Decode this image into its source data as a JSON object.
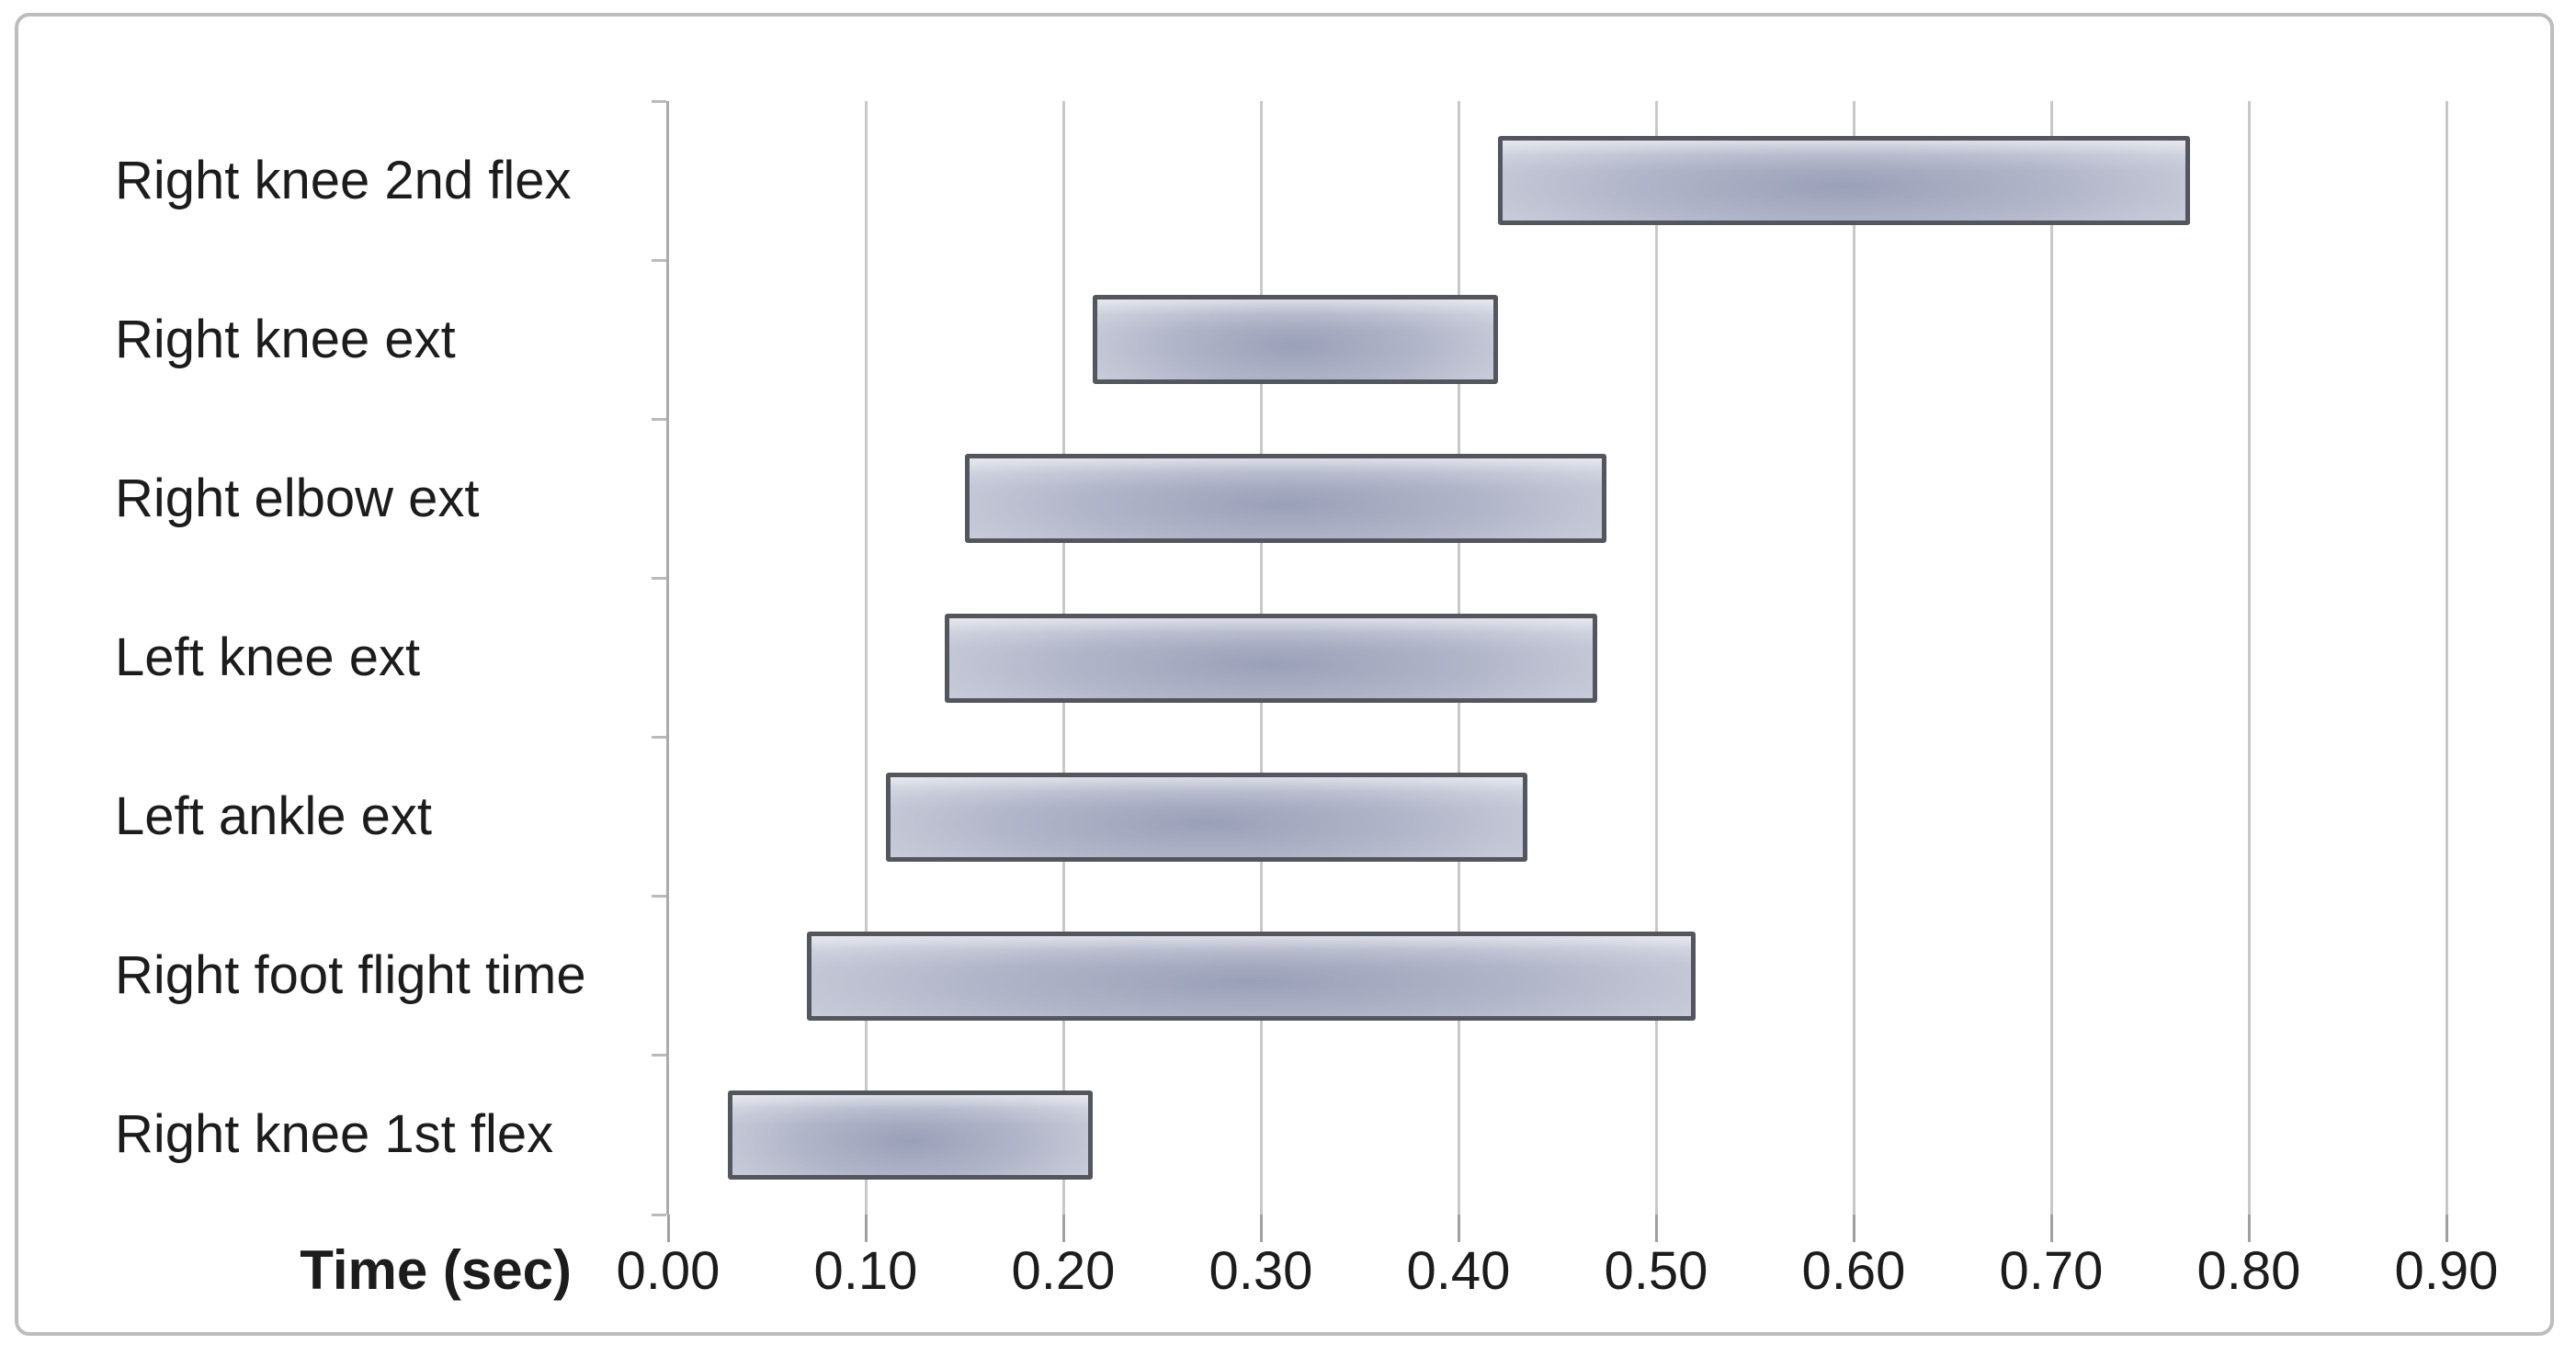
{
  "figure": {
    "background": "#ffffff",
    "frame_border_color": "#bdbdbd"
  },
  "chart_data": {
    "type": "bar",
    "subtype": "horizontal-floating-range",
    "title": "",
    "xlabel": "Time (sec)",
    "ylabel": "",
    "xlim": [
      0.0,
      0.9
    ],
    "xtick_step": 0.1,
    "xticks": [
      0.0,
      0.1,
      0.2,
      0.3,
      0.4,
      0.5,
      0.6,
      0.7,
      0.8,
      0.9
    ],
    "xtick_labels": [
      "0.00",
      "0.10",
      "0.20",
      "0.30",
      "0.40",
      "0.50",
      "0.60",
      "0.70",
      "0.80",
      "0.90"
    ],
    "grid": true,
    "legend": false,
    "categories": [
      "Right knee 2nd flex",
      "Right knee ext",
      "Right elbow ext",
      "Left knee ext",
      "Left ankle ext",
      "Right foot flight time",
      "Right knee 1st flex"
    ],
    "bars": [
      {
        "label": "Right knee 2nd flex",
        "start": 0.42,
        "end": 0.77
      },
      {
        "label": "Right knee ext",
        "start": 0.215,
        "end": 0.42
      },
      {
        "label": "Right elbow ext",
        "start": 0.15,
        "end": 0.475
      },
      {
        "label": "Left knee ext",
        "start": 0.14,
        "end": 0.47
      },
      {
        "label": "Left ankle ext",
        "start": 0.11,
        "end": 0.435
      },
      {
        "label": "Right foot flight time",
        "start": 0.07,
        "end": 0.52
      },
      {
        "label": "Right knee 1st flex",
        "start": 0.03,
        "end": 0.215
      }
    ],
    "colors": {
      "bar_fill_light": "#cdd1dd",
      "bar_fill_mid": "#b2b6c9",
      "bar_fill_dark": "#9aa0b8",
      "bar_border": "#54565e",
      "gridline": "#c8c8c8",
      "axis_line": "#ababab",
      "tick": "#a0a0a0",
      "tick_minor": "#bababa",
      "text": "#1c1c1c"
    }
  }
}
